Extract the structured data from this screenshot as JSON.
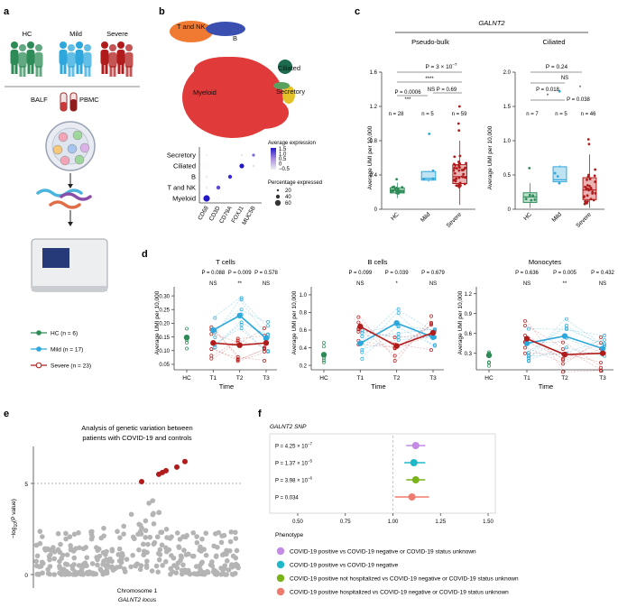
{
  "panel_labels": {
    "a": "a",
    "b": "b",
    "c": "c",
    "d": "d",
    "e": "e",
    "f": "f"
  },
  "colors": {
    "hc": "#2e8b57",
    "mild": "#2ea8dc",
    "severe": "#b01c1c",
    "umap_myeloid": "#e03a3a",
    "umap_tnk": "#f07a32",
    "umap_ciliated": "#1d6b4f",
    "umap_secretory": "#e6c229",
    "grey": "#b4b4b4"
  },
  "panel_a": {
    "groups": [
      {
        "label": "HC"
      },
      {
        "label": "Mild"
      },
      {
        "label": "Severe"
      }
    ],
    "sample_labels": {
      "balf": "BALF",
      "pbmc": "PBMC"
    },
    "legend": [
      {
        "text": "HC (n = 6)"
      },
      {
        "text": "Mild (n = 17)"
      },
      {
        "text": "Severe (n = 23)"
      }
    ]
  },
  "panel_b": {
    "umap_labels": {
      "tnk": "T and NK",
      "b": "B",
      "myeloid": "Myeloid",
      "ciliated": "Ciliated",
      "secretory": "Secretory"
    },
    "dot_rows": [
      "Secretory",
      "Ciliated",
      "B",
      "T and NK",
      "Myeloid"
    ],
    "dot_cols": [
      "CD68",
      "CD3D",
      "CD79A",
      "FOXJ1",
      "MUC5B"
    ],
    "avg_expr_title": "Average expression",
    "avg_expr_ticks": [
      "1.5",
      "1.0",
      "0.5",
      "0",
      "−0.5"
    ],
    "pct_title": "Percentage expressed",
    "pct_values": [
      "20",
      "40",
      "60"
    ]
  },
  "panel_c": {
    "gene": "GALNT2",
    "left_title": "Pseudo-bulk",
    "right_title": "Ciliated",
    "ylabel": "Average UMI per 10,000",
    "xcats": [
      "HC",
      "Mild",
      "Severe"
    ],
    "left": {
      "overall_p": "P = 3 × 10",
      "overall_p_exp": "−7",
      "stars": "****",
      "p_hc_mild": "P = 0.0006",
      "stars2": "***",
      "p_mild_severe": "NS P = 0.69",
      "ns": [
        "n = 28",
        "n = 5",
        "n = 59"
      ],
      "yticks": [
        "0",
        "0.4",
        "0.8",
        "1.2",
        "1.6"
      ],
      "ylim": [
        0,
        1.6
      ]
    },
    "right": {
      "overall_p": "P = 0.24",
      "ns_label": "NS",
      "p_hc_mild": "P = 0.018",
      "star1": "*",
      "p_mild_severe": "P = 0.038",
      "star2": "*",
      "ns": [
        "n = 7",
        "n = 5",
        "n = 46"
      ],
      "yticks": [
        "0",
        "0.5",
        "1.0",
        "1.5",
        "2.0"
      ],
      "ylim": [
        0,
        2.0
      ]
    }
  },
  "panel_d": {
    "ylabel": "Average UMI per 10,000",
    "xlabel": "Time",
    "xcats": [
      "HC",
      "T1",
      "T2",
      "T3"
    ],
    "panels": [
      {
        "title": "T cells",
        "pvals": [
          "P = 0.088",
          "P = 0.009",
          "P = 0.578"
        ],
        "sig": [
          "NS",
          "**",
          "NS"
        ],
        "yticks": [
          "0.05",
          "0.10",
          "0.15",
          "0.20",
          "0.25",
          "0.30"
        ],
        "ylim": [
          0.03,
          0.32
        ],
        "hc": 0.148,
        "mild": [
          0.175,
          0.228,
          0.145
        ],
        "severe": [
          0.128,
          0.12,
          0.128
        ]
      },
      {
        "title": "B cells",
        "pvals": [
          "P = 0.099",
          "P = 0.039",
          "P = 0.679"
        ],
        "sig": [
          "NS",
          "*",
          "NS"
        ],
        "yticks": [
          "0.2",
          "0.4",
          "0.6",
          "0.8",
          "1.0"
        ],
        "ylim": [
          0.15,
          1.05
        ],
        "hc": 0.32,
        "mild": [
          0.45,
          0.68,
          0.52
        ],
        "severe": [
          0.64,
          0.42,
          0.57
        ]
      },
      {
        "title": "Monocytes",
        "pvals": [
          "P = 0.636",
          "P = 0.005",
          "P = 0.432"
        ],
        "sig": [
          "NS",
          "**",
          "NS"
        ],
        "yticks": [
          "0.3",
          "0.6",
          "0.9",
          "1.2"
        ],
        "ylim": [
          0.05,
          1.25
        ],
        "hc": 0.27,
        "mild": [
          0.45,
          0.56,
          0.37
        ],
        "severe": [
          0.52,
          0.28,
          0.3
        ]
      }
    ]
  },
  "panel_e": {
    "title_line1": "Analysis of genetic variation between",
    "title_line2": "patients with COVID-19 and controls",
    "ylabel_pre": "−log",
    "ylabel_sub": "10",
    "ylabel_post": "(P value)",
    "yticks": [
      "0",
      "5"
    ],
    "xlabel_line1": "Chromosome 1",
    "xlabel_line2": "GALNT2 locus"
  },
  "panel_f": {
    "title": "GALNT2 SNP",
    "xticks": [
      "0.50",
      "0.75",
      "1.00",
      "1.25",
      "1.50"
    ],
    "rows": [
      {
        "p": "P = 4.25 × 10",
        "exp": "−7",
        "or": 1.12,
        "lo": 1.07,
        "hi": 1.17,
        "color": "#c48ae6"
      },
      {
        "p": "P = 1.37 × 10",
        "exp": "−5",
        "or": 1.11,
        "lo": 1.06,
        "hi": 1.17,
        "color": "#1fb8c8"
      },
      {
        "p": "P = 3.98 × 10",
        "exp": "−6",
        "or": 1.12,
        "lo": 1.07,
        "hi": 1.17,
        "color": "#7ab31a"
      },
      {
        "p": "P = 0.034",
        "exp": "",
        "or": 1.1,
        "lo": 1.01,
        "hi": 1.19,
        "color": "#ee7b6e"
      }
    ],
    "phenotype_title": "Phenotype",
    "phenotypes": [
      "COVID-19 positive vs COVID-19 negative or COVID-19 status unknown",
      "COVID-19 positive vs COVID-19 negative",
      "COVID-19 positive not hospitalized vs COVID-19 negative or COVID-19 status unknown",
      "COVID-19 positive hospitalized vs COVID-19 negative or COVID-19 status unknown"
    ]
  },
  "chart_data": [
    {
      "type": "box",
      "title": "GALNT2 Pseudo-bulk",
      "categories": [
        "HC",
        "Mild",
        "Severe"
      ],
      "series": [
        {
          "name": "median",
          "values": [
            0.22,
            0.36,
            0.38
          ]
        }
      ],
      "ylabel": "Average UMI per 10,000",
      "ylim": [
        0,
        1.6
      ]
    },
    {
      "type": "box",
      "title": "GALNT2 Ciliated",
      "categories": [
        "HC",
        "Mild",
        "Severe"
      ],
      "series": [
        {
          "name": "median",
          "values": [
            0.18,
            0.43,
            0.28
          ]
        }
      ],
      "ylabel": "Average UMI per 10,000",
      "ylim": [
        0,
        2.0
      ]
    },
    {
      "type": "line",
      "title": "T cells",
      "x": [
        "HC",
        "T1",
        "T2",
        "T3"
      ],
      "series": [
        {
          "name": "HC",
          "values": [
            0.148,
            null,
            null,
            null
          ]
        },
        {
          "name": "Mild",
          "values": [
            null,
            0.175,
            0.228,
            0.145
          ]
        },
        {
          "name": "Severe",
          "values": [
            null,
            0.128,
            0.12,
            0.128
          ]
        }
      ],
      "xlabel": "Time",
      "ylabel": "Average UMI per 10,000",
      "ylim": [
        0.03,
        0.32
      ]
    },
    {
      "type": "line",
      "title": "B cells",
      "x": [
        "HC",
        "T1",
        "T2",
        "T3"
      ],
      "series": [
        {
          "name": "HC",
          "values": [
            0.32,
            null,
            null,
            null
          ]
        },
        {
          "name": "Mild",
          "values": [
            null,
            0.45,
            0.68,
            0.52
          ]
        },
        {
          "name": "Severe",
          "values": [
            null,
            0.64,
            0.42,
            0.57
          ]
        }
      ],
      "xlabel": "Time",
      "ylabel": "Average UMI per 10,000",
      "ylim": [
        0.15,
        1.05
      ]
    },
    {
      "type": "line",
      "title": "Monocytes",
      "x": [
        "HC",
        "T1",
        "T2",
        "T3"
      ],
      "series": [
        {
          "name": "HC",
          "values": [
            0.27,
            null,
            null,
            null
          ]
        },
        {
          "name": "Mild",
          "values": [
            null,
            0.45,
            0.56,
            0.37
          ]
        },
        {
          "name": "Severe",
          "values": [
            null,
            0.52,
            0.28,
            0.3
          ]
        }
      ],
      "xlabel": "Time",
      "ylabel": "Average UMI per 10,000",
      "ylim": [
        0.05,
        1.25
      ]
    },
    {
      "type": "scatter",
      "title": "Chromosome 1 GALNT2 locus",
      "ylabel": "−log10(P value)",
      "ylim": [
        0,
        6.5
      ],
      "series": [
        {
          "name": "significant",
          "values": [
            5.1,
            5.5,
            5.6,
            5.7,
            5.9,
            6.2
          ]
        }
      ]
    },
    {
      "type": "forest",
      "title": "GALNT2 SNP",
      "xlim": [
        0.5,
        1.5
      ],
      "series": [
        {
          "name": "odds_ratio",
          "values": [
            1.12,
            1.11,
            1.12,
            1.1
          ]
        }
      ]
    }
  ]
}
